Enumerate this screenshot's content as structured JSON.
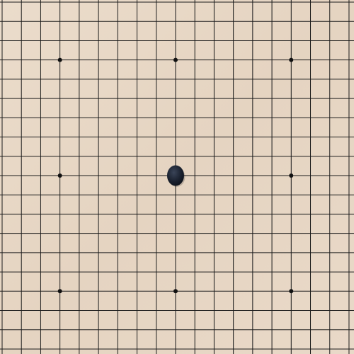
{
  "board": {
    "size": 19,
    "color": "#e7d7c5",
    "line_color": "#1c1c1c",
    "star_point_color": "#111111",
    "star_points": [
      {
        "col": 3,
        "row": 3
      },
      {
        "col": 9,
        "row": 3
      },
      {
        "col": 15,
        "row": 3
      },
      {
        "col": 3,
        "row": 9
      },
      {
        "col": 9,
        "row": 9
      },
      {
        "col": 15,
        "row": 9
      },
      {
        "col": 3,
        "row": 15
      },
      {
        "col": 9,
        "row": 15
      },
      {
        "col": 15,
        "row": 15
      }
    ],
    "stones": [
      {
        "color": "black",
        "col": 9,
        "row": 9
      }
    ],
    "stone_colors": {
      "black": "#1b2230",
      "white": "#f4f4f0"
    }
  }
}
